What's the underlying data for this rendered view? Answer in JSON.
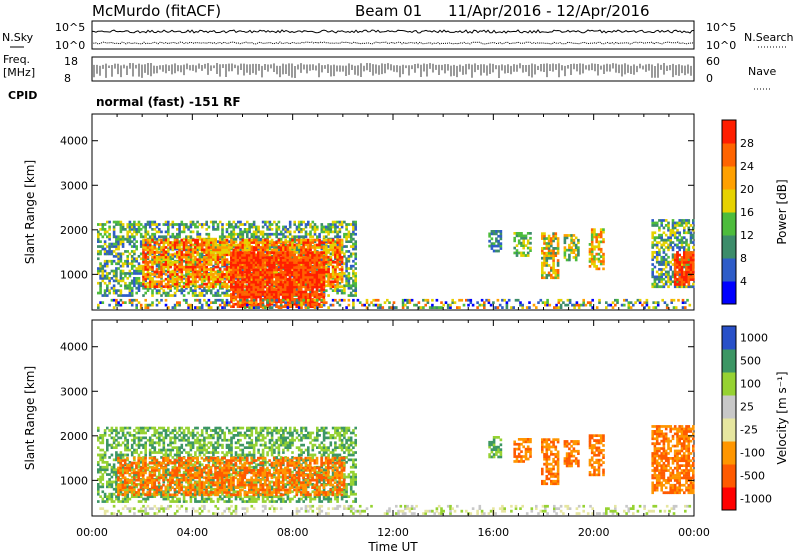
{
  "header": {
    "station": "McMurdo (fitACF)",
    "beam": "Beam 01",
    "date_range": "11/Apr/2016 - 12/Apr/2016"
  },
  "strips": {
    "nsky_label": "N.Sky",
    "nsearch_label": "N.Search",
    "nsky_ticks": [
      "10^5",
      "10^0"
    ],
    "nsearch_ticks": [
      "10^5",
      "10^0"
    ],
    "freq_label_1": "Freq.",
    "freq_label_2": "[MHz]",
    "freq_ticks": [
      "18",
      "8"
    ],
    "nave_label": "Nave",
    "nave_ticks": [
      "60",
      "0"
    ],
    "cpid_label": "CPID",
    "cpid_text": "normal (fast) -151 RF"
  },
  "colors": {
    "power_scale": [
      "#0000ff",
      "#2e5cc8",
      "#3c8c6a",
      "#4dbc3c",
      "#e6d200",
      "#ffa000",
      "#ff6400",
      "#ff1e00"
    ],
    "velocity_scale": [
      "#ff0000",
      "#ff5a00",
      "#ff9600",
      "#e6e6a0",
      "#c8c8c8",
      "#96d232",
      "#3c9664",
      "#2850c8"
    ]
  },
  "chart_data": [
    {
      "type": "heatmap",
      "name": "power",
      "ylabel": "Slant Range [km]",
      "xlabel": "",
      "x_ticks": [
        "00:00",
        "04:00",
        "08:00",
        "12:00",
        "16:00",
        "20:00",
        "00:00"
      ],
      "y_ticks": [
        "1000",
        "2000",
        "3000",
        "4000"
      ],
      "ylim": [
        200,
        4600
      ],
      "xlim_hours": [
        0,
        24
      ],
      "colorbar": {
        "label": "Power [dB]",
        "ticks": [
          "4",
          "8",
          "12",
          "16",
          "20",
          "24",
          "28"
        ]
      },
      "blobs": [
        {
          "t0": 0.2,
          "t1": 10.5,
          "r0": 500,
          "r1": 2200,
          "dens": 0.55,
          "lvl": [
            1,
            4
          ]
        },
        {
          "t0": 2.0,
          "t1": 10.0,
          "r0": 700,
          "r1": 1750,
          "dens": 0.7,
          "lvl": [
            4,
            7
          ]
        },
        {
          "t0": 5.5,
          "t1": 9.2,
          "r0": 250,
          "r1": 1500,
          "dens": 0.85,
          "lvl": [
            6,
            7
          ]
        },
        {
          "t0": 0.2,
          "t1": 23.8,
          "r0": 230,
          "r1": 420,
          "dens": 0.35,
          "lvl": [
            0,
            6
          ]
        },
        {
          "t0": 15.8,
          "t1": 16.3,
          "r0": 1500,
          "r1": 1950,
          "dens": 0.6,
          "lvl": [
            1,
            3
          ]
        },
        {
          "t0": 16.8,
          "t1": 17.5,
          "r0": 1400,
          "r1": 1900,
          "dens": 0.6,
          "lvl": [
            2,
            4
          ]
        },
        {
          "t0": 17.9,
          "t1": 18.6,
          "r0": 900,
          "r1": 1900,
          "dens": 0.65,
          "lvl": [
            2,
            6
          ]
        },
        {
          "t0": 18.8,
          "t1": 19.4,
          "r0": 1300,
          "r1": 1900,
          "dens": 0.6,
          "lvl": [
            2,
            5
          ]
        },
        {
          "t0": 19.8,
          "t1": 20.4,
          "r0": 1100,
          "r1": 2000,
          "dens": 0.65,
          "lvl": [
            3,
            6
          ]
        },
        {
          "t0": 22.3,
          "t1": 24.0,
          "r0": 700,
          "r1": 2200,
          "dens": 0.6,
          "lvl": [
            1,
            4
          ]
        },
        {
          "t0": 23.2,
          "t1": 24.0,
          "r0": 750,
          "r1": 1500,
          "dens": 0.8,
          "lvl": [
            6,
            7
          ]
        }
      ]
    },
    {
      "type": "heatmap",
      "name": "velocity",
      "ylabel": "Slant Range [km]",
      "xlabel": "Time UT",
      "x_ticks": [
        "00:00",
        "04:00",
        "08:00",
        "12:00",
        "16:00",
        "20:00",
        "00:00"
      ],
      "y_ticks": [
        "1000",
        "2000",
        "3000",
        "4000"
      ],
      "ylim": [
        200,
        4600
      ],
      "xlim_hours": [
        0,
        24
      ],
      "colorbar": {
        "label": "Velocity [m s⁻¹]",
        "ticks": [
          "-1000",
          "-500",
          "-100",
          "-25",
          "25",
          "100",
          "500",
          "1000"
        ]
      },
      "blobs": [
        {
          "t0": 0.2,
          "t1": 10.5,
          "r0": 500,
          "r1": 2200,
          "dens": 0.55,
          "lvl": [
            5,
            6
          ]
        },
        {
          "t0": 1.0,
          "t1": 10.0,
          "r0": 650,
          "r1": 1500,
          "dens": 0.6,
          "lvl": [
            1,
            2
          ]
        },
        {
          "t0": 0.2,
          "t1": 23.8,
          "r0": 230,
          "r1": 420,
          "dens": 0.3,
          "lvl": [
            3,
            5
          ]
        },
        {
          "t0": 15.8,
          "t1": 16.3,
          "r0": 1500,
          "r1": 1950,
          "dens": 0.6,
          "lvl": [
            5,
            6
          ]
        },
        {
          "t0": 16.8,
          "t1": 17.5,
          "r0": 1400,
          "r1": 1900,
          "dens": 0.6,
          "lvl": [
            1,
            2
          ]
        },
        {
          "t0": 17.9,
          "t1": 18.6,
          "r0": 900,
          "r1": 1900,
          "dens": 0.65,
          "lvl": [
            1,
            2
          ]
        },
        {
          "t0": 18.8,
          "t1": 19.4,
          "r0": 1300,
          "r1": 1900,
          "dens": 0.6,
          "lvl": [
            1,
            2
          ]
        },
        {
          "t0": 19.8,
          "t1": 20.4,
          "r0": 1100,
          "r1": 2000,
          "dens": 0.65,
          "lvl": [
            1,
            2
          ]
        },
        {
          "t0": 22.3,
          "t1": 24.0,
          "r0": 700,
          "r1": 2200,
          "dens": 0.7,
          "lvl": [
            1,
            2
          ]
        }
      ]
    }
  ]
}
